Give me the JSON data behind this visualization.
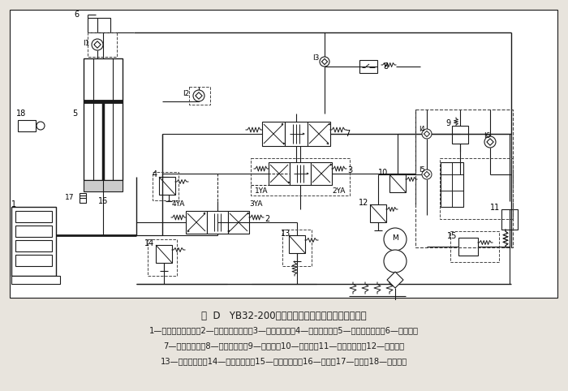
{
  "title": "图  D   YB32-200型四柱万能液压机的液压系统原理图",
  "caption_line1": "1—下缸（顶出缸）；2—下缸电液换向阀；3—主缸先导阀；4—主缸安全阀；5—上缸（主缸）；6—充液箱；",
  "caption_line2": "7—主缸换向阀；8—压力继电器；9—释压阀；10—顺序阀；11—泵站溢流阀；12—减压阀；",
  "caption_line3": "13—下缸溢流阀；14—下缸安全阀；15—远程调压阀；16—滑块；17—挡块；18—行程开关",
  "bg_color": "#e8e4dd",
  "line_color": "#1a1a1a",
  "dashed_color": "#444444"
}
